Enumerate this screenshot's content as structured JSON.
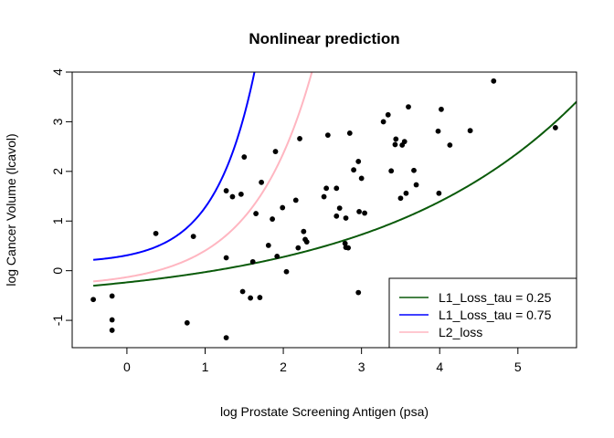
{
  "chart_data": {
    "type": "scatter",
    "title": "Nonlinear prediction",
    "xlabel": "log Prostate Screening Antigen (psa)",
    "ylabel": "log Cancer Volume (lcavol)",
    "xlim": [
      -0.7,
      5.75
    ],
    "ylim": [
      -1.55,
      4.0
    ],
    "xticks": [
      0,
      1,
      2,
      3,
      4,
      5
    ],
    "yticks": [
      -1,
      0,
      1,
      2,
      3,
      4
    ],
    "xtick_labels": [
      "0",
      "1",
      "2",
      "3",
      "4",
      "5"
    ],
    "ytick_labels": [
      "-1",
      "0",
      "1",
      "2",
      "3",
      "4"
    ],
    "grid": false,
    "legend_position": "bottom-right",
    "points": [
      [
        -0.43,
        -0.58
      ],
      [
        -0.19,
        -0.51
      ],
      [
        -0.19,
        -0.99
      ],
      [
        -0.19,
        -1.2
      ],
      [
        0.37,
        0.75
      ],
      [
        0.77,
        -1.05
      ],
      [
        0.85,
        0.69
      ],
      [
        1.27,
        -1.35
      ],
      [
        1.27,
        0.26
      ],
      [
        1.27,
        1.61
      ],
      [
        1.35,
        1.49
      ],
      [
        1.46,
        1.54
      ],
      [
        1.48,
        -0.42
      ],
      [
        1.5,
        2.29
      ],
      [
        1.58,
        -0.55
      ],
      [
        1.61,
        0.18
      ],
      [
        1.65,
        1.15
      ],
      [
        1.7,
        -0.54
      ],
      [
        1.72,
        1.78
      ],
      [
        1.81,
        0.51
      ],
      [
        1.86,
        1.04
      ],
      [
        1.9,
        2.4
      ],
      [
        1.92,
        0.29
      ],
      [
        1.99,
        1.27
      ],
      [
        2.04,
        -0.02
      ],
      [
        2.16,
        1.42
      ],
      [
        2.19,
        0.46
      ],
      [
        2.21,
        2.66
      ],
      [
        2.26,
        0.79
      ],
      [
        2.28,
        0.63
      ],
      [
        2.3,
        0.58
      ],
      [
        2.52,
        1.49
      ],
      [
        2.55,
        1.66
      ],
      [
        2.57,
        2.73
      ],
      [
        2.68,
        1.1
      ],
      [
        2.68,
        1.66
      ],
      [
        2.72,
        1.26
      ],
      [
        2.79,
        0.55
      ],
      [
        2.8,
        1.06
      ],
      [
        2.8,
        0.47
      ],
      [
        2.83,
        0.46
      ],
      [
        2.85,
        2.77
      ],
      [
        2.9,
        2.03
      ],
      [
        2.96,
        2.2
      ],
      [
        2.96,
        -0.44
      ],
      [
        2.97,
        1.19
      ],
      [
        3.0,
        1.86
      ],
      [
        3.04,
        1.16
      ],
      [
        3.28,
        3.0
      ],
      [
        3.34,
        3.14
      ],
      [
        3.38,
        2.01
      ],
      [
        3.43,
        2.54
      ],
      [
        3.44,
        2.65
      ],
      [
        3.5,
        1.46
      ],
      [
        3.52,
        2.53
      ],
      [
        3.55,
        2.6
      ],
      [
        3.57,
        1.56
      ],
      [
        3.6,
        3.3
      ],
      [
        3.67,
        2.02
      ],
      [
        3.7,
        1.73
      ],
      [
        3.98,
        2.81
      ],
      [
        3.99,
        1.56
      ],
      [
        4.02,
        3.25
      ],
      [
        4.13,
        2.53
      ],
      [
        4.39,
        2.82
      ],
      [
        4.69,
        3.82
      ],
      [
        5.48,
        2.88
      ]
    ],
    "series": [
      {
        "name": "L1_Loss_tau = 0.25",
        "color": "#0a5a0a",
        "a": -0.67,
        "b": 0.435,
        "c": 0.389
      },
      {
        "name": "L1_Loss_tau = 0.75",
        "color": "#0000ff",
        "a": 0.15,
        "b": 0.16,
        "c": 1.95
      },
      {
        "name": "L2_loss",
        "color": "#ffb6c1",
        "a": -0.33,
        "b": 0.2,
        "c": 1.3
      }
    ]
  }
}
